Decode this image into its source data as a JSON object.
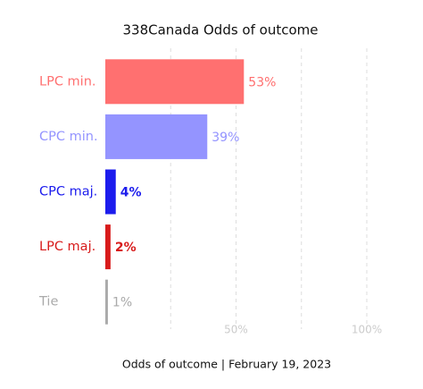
{
  "chart_data": {
    "type": "bar",
    "orientation": "horizontal",
    "title": "338Canada Odds of outcome",
    "xlabel": "Odds of outcome | February 19, 2023",
    "categories": [
      "LPC min.",
      "CPC min.",
      "CPC maj.",
      "LPC maj.",
      "Tie"
    ],
    "values": [
      53,
      39,
      4,
      2,
      1
    ],
    "value_labels": [
      "53%",
      "39%",
      "4%",
      "2%",
      "1%"
    ],
    "colors": [
      "#ff7070",
      "#9494ff",
      "#1c1ced",
      "#d81b1b",
      "#aaaaaa"
    ],
    "xlim": [
      0,
      100
    ],
    "xticks": [
      {
        "value": 50,
        "label": "50%"
      },
      {
        "value": 100,
        "label": "100%"
      }
    ],
    "xgrid": [
      25,
      50,
      75,
      100
    ],
    "grid": true
  }
}
